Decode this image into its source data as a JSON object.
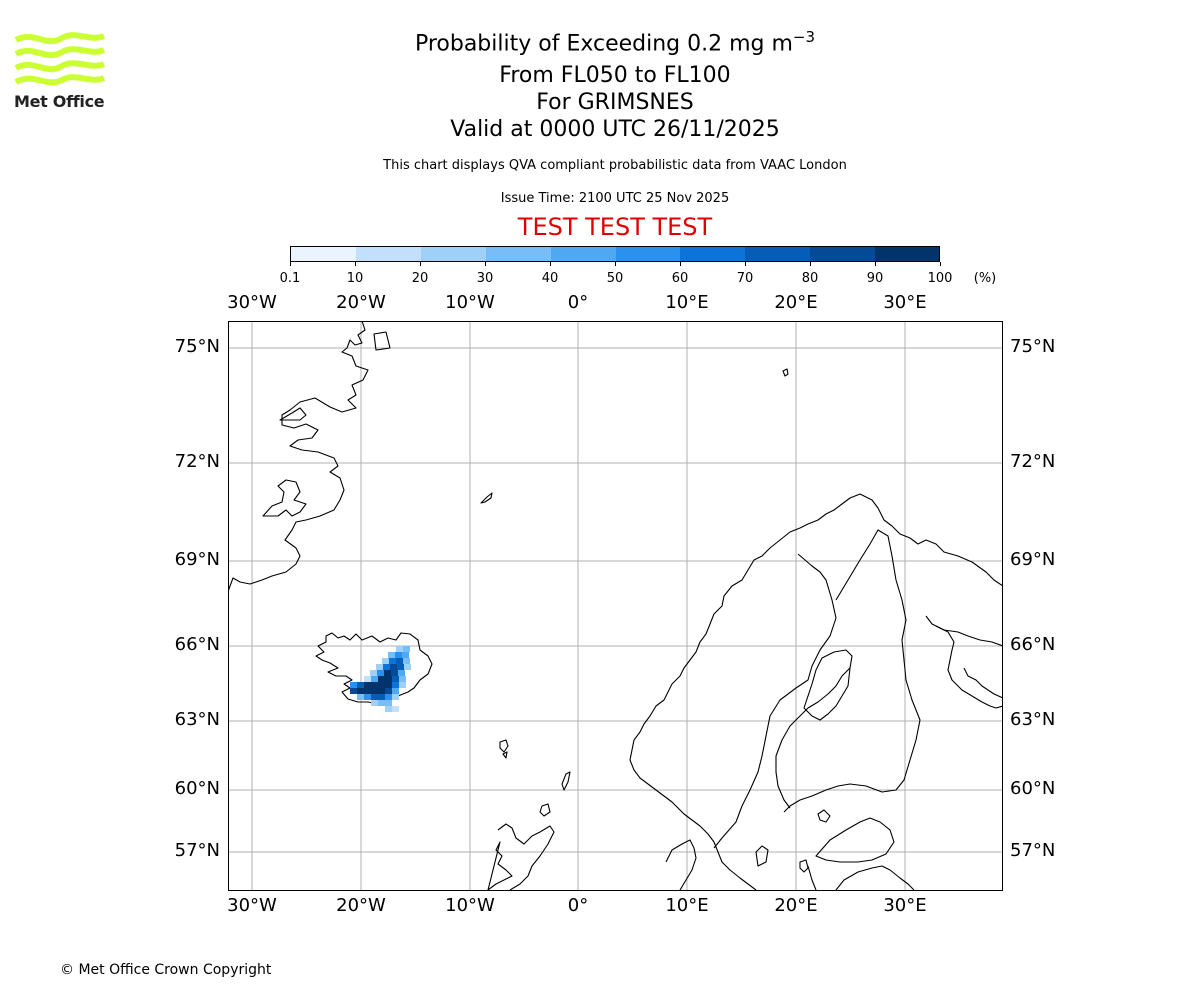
{
  "logo": {
    "text": "Met Office",
    "color": "#ccff33"
  },
  "header": {
    "title_main": "Probability of Exceeding 0.2 mg m",
    "title_sup": "−3",
    "line2": "From FL050 to FL100",
    "line3": "For GRIMSNES",
    "line4": "Valid at 0000 UTC 26/11/2025",
    "note": "This chart displays QVA compliant probabilistic data from VAAC London",
    "issue": "Issue Time: 2100 UTC 25 Nov 2025",
    "test_banner": "TEST TEST TEST",
    "test_color": "#e00000"
  },
  "colorbar": {
    "ticks": [
      "0.1",
      "10",
      "20",
      "30",
      "40",
      "50",
      "60",
      "70",
      "80",
      "90",
      "100"
    ],
    "unit": "(%)",
    "colors": [
      "#eaf4ff",
      "#c2e0fb",
      "#9fd0f8",
      "#78bdf6",
      "#4fa8f2",
      "#2a92ee",
      "#0c74d9",
      "#065db8",
      "#044a96",
      "#03336b"
    ]
  },
  "map": {
    "lon_labels": [
      "30°W",
      "20°W",
      "10°W",
      "0°",
      "10°E",
      "20°E",
      "30°E"
    ],
    "lat_labels": [
      "75°N",
      "72°N",
      "69°N",
      "66°N",
      "63°N",
      "60°N",
      "57°N"
    ],
    "plume_location": "GRIMSNES"
  },
  "footer": {
    "copyright": "© Met Office Crown Copyright"
  }
}
